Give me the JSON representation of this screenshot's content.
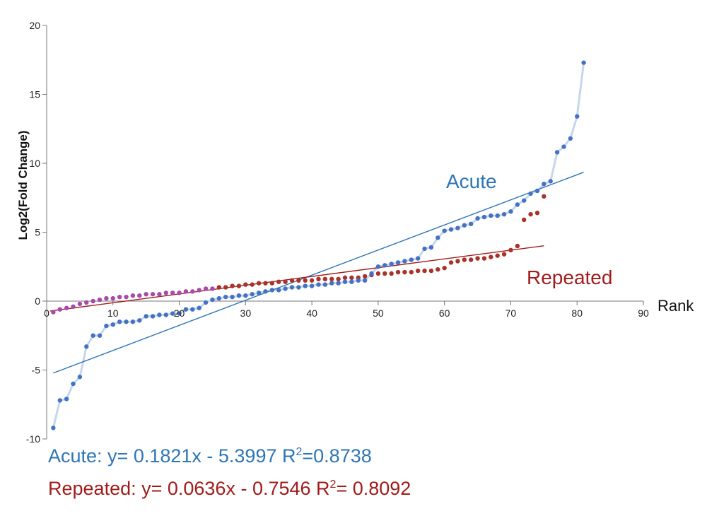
{
  "chart_data": {
    "type": "scatter",
    "title": "",
    "xlabel": "Rank",
    "ylabel": "Log2(Fold Change)",
    "xlim": [
      0,
      90
    ],
    "ylim": [
      -10,
      20
    ],
    "x_ticks": [
      "0",
      "10",
      "20",
      "30",
      "40",
      "50",
      "60",
      "70",
      "80",
      "90"
    ],
    "y_ticks": [
      "20",
      "15",
      "10",
      "5",
      "0",
      "-5",
      "-10"
    ],
    "grid": false,
    "colors": {
      "acute": "#4472c4",
      "acute_line": "#c7d6ea",
      "acute_trend": "#2e75b6",
      "repeated": "#a9322b",
      "repeated_low": "#a84aa8",
      "repeated_trend": "#a01c1c"
    },
    "series": [
      {
        "name": "Acute",
        "x": [
          1,
          2,
          3,
          4,
          5,
          6,
          7,
          8,
          9,
          10,
          11,
          12,
          13,
          14,
          15,
          16,
          17,
          18,
          19,
          20,
          21,
          22,
          23,
          24,
          25,
          26,
          27,
          28,
          29,
          30,
          31,
          32,
          33,
          34,
          35,
          36,
          37,
          38,
          39,
          40,
          41,
          42,
          43,
          44,
          45,
          46,
          47,
          48,
          49,
          50,
          51,
          52,
          53,
          54,
          55,
          56,
          57,
          58,
          59,
          60,
          61,
          62,
          63,
          64,
          65,
          66,
          67,
          68,
          69,
          70,
          71,
          72,
          73,
          74,
          75,
          76,
          77,
          78,
          79,
          80,
          81
        ],
        "y": [
          -9.2,
          -7.2,
          -7.1,
          -6.0,
          -5.5,
          -3.3,
          -2.5,
          -2.5,
          -1.8,
          -1.7,
          -1.5,
          -1.5,
          -1.5,
          -1.4,
          -1.1,
          -1.1,
          -1.0,
          -1.0,
          -0.9,
          -0.9,
          -0.6,
          -0.6,
          -0.5,
          -0.1,
          0.1,
          0.2,
          0.3,
          0.3,
          0.4,
          0.4,
          0.5,
          0.6,
          0.7,
          0.8,
          0.8,
          0.9,
          1.0,
          1.0,
          1.1,
          1.1,
          1.2,
          1.2,
          1.3,
          1.3,
          1.4,
          1.4,
          1.5,
          1.5,
          2.0,
          2.5,
          2.6,
          2.7,
          2.8,
          2.9,
          3.0,
          3.1,
          3.8,
          3.9,
          4.6,
          5.1,
          5.2,
          5.3,
          5.5,
          5.6,
          6.0,
          6.1,
          6.2,
          6.2,
          6.3,
          6.5,
          7.0,
          7.3,
          7.8,
          8.0,
          8.5,
          8.7,
          10.8,
          11.2,
          11.8,
          13.4,
          17.3
        ]
      },
      {
        "name": "Repeated",
        "x": [
          1,
          2,
          3,
          4,
          5,
          6,
          7,
          8,
          9,
          10,
          11,
          12,
          13,
          14,
          15,
          16,
          17,
          18,
          19,
          20,
          21,
          22,
          23,
          24,
          25,
          26,
          27,
          28,
          29,
          30,
          31,
          32,
          33,
          34,
          35,
          36,
          37,
          38,
          39,
          40,
          41,
          42,
          43,
          44,
          45,
          46,
          47,
          48,
          49,
          50,
          51,
          52,
          53,
          54,
          55,
          56,
          57,
          58,
          59,
          60,
          61,
          62,
          63,
          64,
          65,
          66,
          67,
          68,
          69,
          70,
          71,
          72,
          73,
          74,
          75
        ],
        "y": [
          -0.8,
          -0.6,
          -0.5,
          -0.4,
          -0.2,
          -0.1,
          0.0,
          0.1,
          0.2,
          0.2,
          0.3,
          0.3,
          0.4,
          0.4,
          0.5,
          0.5,
          0.5,
          0.6,
          0.6,
          0.6,
          0.7,
          0.7,
          0.8,
          0.9,
          0.9,
          1.0,
          1.0,
          1.1,
          1.1,
          1.2,
          1.2,
          1.3,
          1.3,
          1.3,
          1.4,
          1.4,
          1.5,
          1.5,
          1.5,
          1.5,
          1.6,
          1.6,
          1.6,
          1.6,
          1.7,
          1.7,
          1.7,
          1.8,
          1.9,
          2.0,
          2.0,
          2.0,
          2.1,
          2.1,
          2.1,
          2.2,
          2.2,
          2.2,
          2.3,
          2.4,
          2.8,
          2.9,
          3.0,
          3.0,
          3.1,
          3.1,
          3.2,
          3.3,
          3.4,
          3.7,
          4.0,
          5.9,
          6.3,
          6.4,
          7.6
        ]
      }
    ],
    "trendlines": [
      {
        "series": "Acute",
        "slope": 0.1821,
        "intercept": -5.3997,
        "x_range": [
          1,
          81
        ]
      },
      {
        "series": "Repeated",
        "slope": 0.0636,
        "intercept": -0.7546,
        "x_range": [
          0.5,
          75
        ]
      }
    ],
    "annotations": {
      "acute_label": "Acute",
      "repeated_label": "Repeated",
      "acute_eq_text": "Acute: y= 0.1821x - 5.3997  R",
      "acute_eq_sup": "2",
      "acute_eq_tail": "=0.8738",
      "repeated_eq_text": "Repeated: y= 0.0636x - 0.7546 R",
      "repeated_eq_sup": "2",
      "repeated_eq_tail": "= 0.8092"
    }
  }
}
